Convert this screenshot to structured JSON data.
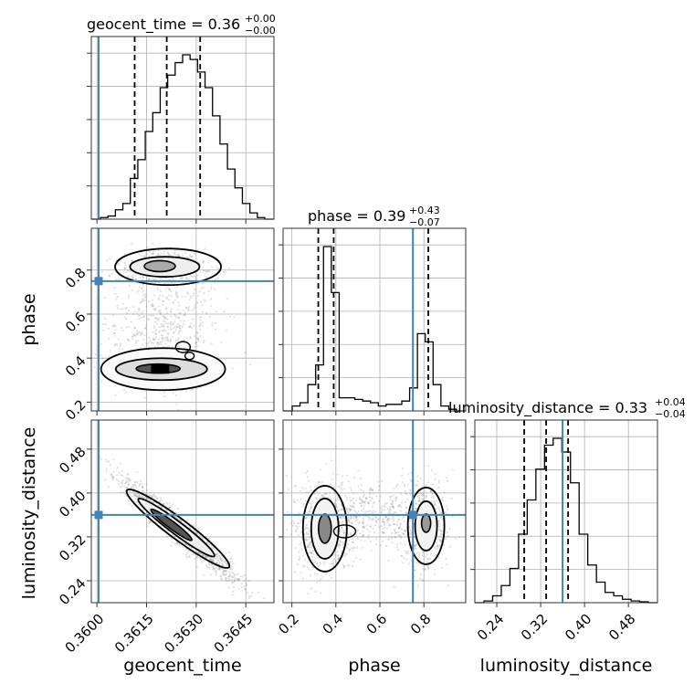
{
  "chart_data": {
    "type": "corner",
    "parameters": [
      "geocent_time",
      "phase",
      "luminosity_distance"
    ],
    "truth": {
      "geocent_time": 0.36005,
      "phase": 0.75,
      "luminosity_distance": 0.36
    },
    "titles": [
      {
        "name": "geocent_time",
        "value": "0.36",
        "plus": "+0.00",
        "minus": "−0.00"
      },
      {
        "name": "phase",
        "value": "0.39",
        "plus": "+0.43",
        "minus": "−0.07"
      },
      {
        "name": "luminosity_distance",
        "value": "0.33",
        "plus": "+0.04",
        "minus": "−0.04"
      }
    ],
    "axes": {
      "geocent_time": {
        "range": [
          0.35983,
          0.36535
        ],
        "ticks": [
          "0.3600",
          "0.3615",
          "0.3630",
          "0.3645"
        ],
        "tick_values": [
          0.36,
          0.3615,
          0.363,
          0.3645
        ]
      },
      "phase": {
        "range": [
          0.16,
          0.99
        ],
        "ticks": [
          "0.2",
          "0.4",
          "0.6",
          "0.8"
        ],
        "tick_values": [
          0.2,
          0.4,
          0.6,
          0.8
        ]
      },
      "luminosity_distance": {
        "range": [
          0.2,
          0.533
        ],
        "ticks": [
          "0.24",
          "0.32",
          "0.40",
          "0.48"
        ],
        "tick_values": [
          0.24,
          0.32,
          0.4,
          0.48
        ]
      }
    },
    "quantile_lines": {
      "geocent_time": [
        0.36114,
        0.36211,
        0.36312
      ],
      "phase": [
        0.32,
        0.39,
        0.82
      ],
      "luminosity_distance": [
        0.29,
        0.33,
        0.37
      ]
    },
    "histograms": {
      "geocent_time": [
        1,
        2,
        6,
        10,
        26,
        38,
        56,
        68,
        84,
        92,
        100,
        105,
        102,
        94,
        84,
        66,
        48,
        32,
        20,
        10,
        4,
        1
      ],
      "phase": [
        3,
        5,
        16,
        28,
        100,
        72,
        8,
        8,
        7,
        6,
        5,
        3,
        4,
        4,
        6,
        14,
        47,
        42,
        16,
        3,
        1
      ],
      "luminosity_distance": [
        1,
        4,
        10,
        20,
        40,
        60,
        78,
        92,
        96,
        88,
        70,
        40,
        22,
        12,
        6,
        4,
        2,
        1,
        0.5
      ]
    },
    "grid": true
  },
  "labels": {
    "x0": "geocent_time",
    "x1": "phase",
    "x2": "luminosity_distance",
    "y1": "phase",
    "y2": "luminosity_distance"
  }
}
